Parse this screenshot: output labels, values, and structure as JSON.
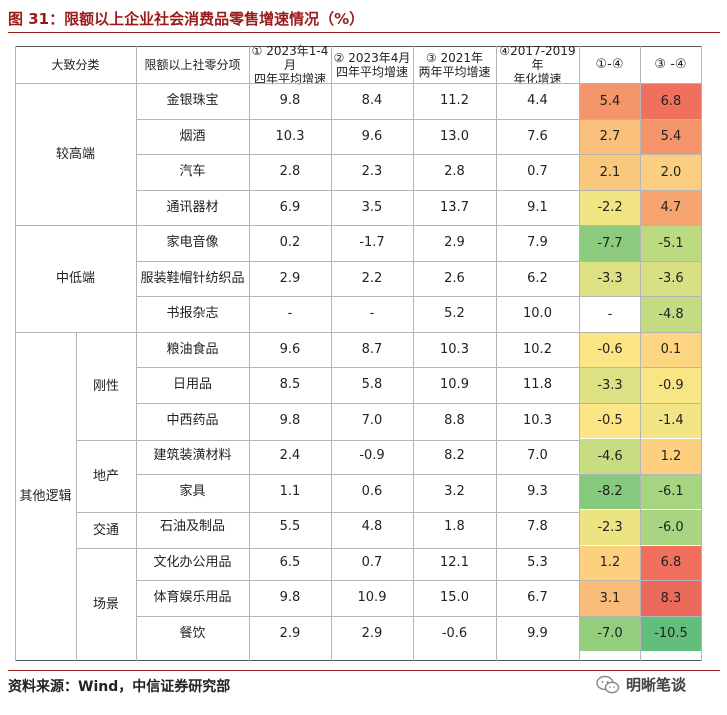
{
  "title": "图 31：限额以上企业社会消费品零售增速情况（%）",
  "headers": [
    "大致分类",
    "限额以上社零分项",
    "① 2023年1-4月\n四年平均增速",
    "② 2023年4月\n四年平均增速",
    "③ 2021年\n两年平均增速",
    "④2017-2019年\n年化增速",
    "①-④",
    "③ -④"
  ],
  "groups": [
    "较高端",
    "中低端",
    "其他逻辑"
  ],
  "subgroups": [
    "刚性",
    "地产",
    "交通",
    "场景"
  ],
  "rows": [
    {
      "item": "金银珠宝",
      "c1": "9.8",
      "c2": "8.4",
      "c3": "11.2",
      "c4": "4.4",
      "d1": "5.4",
      "d2": "6.8",
      "col1": "#f4956b",
      "col2": "#f0705d"
    },
    {
      "item": "烟酒",
      "c1": "10.3",
      "c2": "9.6",
      "c3": "13.0",
      "c4": "7.6",
      "d1": "2.7",
      "d2": "5.4",
      "col1": "#f8c07b",
      "col2": "#f4956b"
    },
    {
      "item": "汽车",
      "c1": "2.8",
      "c2": "2.3",
      "c3": "2.8",
      "c4": "0.7",
      "d1": "2.1",
      "d2": "2.0",
      "col1": "#fac87d",
      "col2": "#fbcf7f"
    },
    {
      "item": "通讯器材",
      "c1": "6.9",
      "c2": "3.5",
      "c3": "13.7",
      "c4": "9.1",
      "d1": "-2.2",
      "d2": "4.7",
      "col1": "#f0e483",
      "col2": "#f6a470"
    },
    {
      "item": "家电音像",
      "c1": "0.2",
      "c2": "-1.7",
      "c3": "2.9",
      "c4": "7.9",
      "d1": "-7.7",
      "d2": "-5.1",
      "col1": "#8ccb7e",
      "col2": "#bcda82"
    },
    {
      "item": "服装鞋帽针纺织品",
      "c1": "2.9",
      "c2": "2.2",
      "c3": "2.6",
      "c4": "6.2",
      "d1": "-3.3",
      "d2": "-3.6",
      "col1": "#dde083",
      "col2": "#d8e083"
    },
    {
      "item": "书报杂志",
      "c1": "-",
      "c2": "-",
      "c3": "5.2",
      "c4": "10.0",
      "d1": "-",
      "d2": "-4.8",
      "col1": "#ffffff",
      "col2": "#c3dc82"
    },
    {
      "item": "粮油食品",
      "c1": "9.6",
      "c2": "8.7",
      "c3": "10.3",
      "c4": "10.2",
      "d1": "-0.6",
      "d2": "0.1",
      "col1": "#fbe585",
      "col2": "#fed580"
    },
    {
      "item": "日用品",
      "c1": "8.5",
      "c2": "5.8",
      "c3": "10.9",
      "c4": "11.8",
      "d1": "-3.3",
      "d2": "-0.9",
      "col1": "#dde083",
      "col2": "#f8e584"
    },
    {
      "item": "中西药品",
      "c1": "9.8",
      "c2": "7.0",
      "c3": "8.8",
      "c4": "10.3",
      "d1": "-0.5",
      "d2": "-1.4",
      "col1": "#fce585",
      "col2": "#f1e484"
    },
    {
      "item": "建筑装潢材料",
      "c1": "2.4",
      "c2": "-0.9",
      "c3": "8.2",
      "c4": "7.0",
      "d1": "-4.6",
      "d2": "1.2",
      "col1": "#c8dd82",
      "col2": "#fdd07f"
    },
    {
      "item": "家具",
      "c1": "1.1",
      "c2": "0.6",
      "c3": "3.2",
      "c4": "9.3",
      "d1": "-8.2",
      "d2": "-6.1",
      "col1": "#84c97e",
      "col2": "#a6d480"
    },
    {
      "item": "石油及制品",
      "c1": "5.5",
      "c2": "4.8",
      "c3": "1.8",
      "c4": "7.8",
      "d1": "-2.3",
      "d2": "-6.0",
      "col1": "#ece383",
      "col2": "#a9d580"
    },
    {
      "item": "文化办公用品",
      "c1": "6.5",
      "c2": "0.7",
      "c3": "12.1",
      "c4": "5.3",
      "d1": "1.2",
      "d2": "6.8",
      "col1": "#fdd07f",
      "col2": "#f0705d"
    },
    {
      "item": "体育娱乐用品",
      "c1": "9.8",
      "c2": "10.9",
      "c3": "15.0",
      "c4": "6.7",
      "d1": "3.1",
      "d2": "8.3",
      "col1": "#f8bd7a",
      "col2": "#ec6a5c"
    },
    {
      "item": "餐饮",
      "c1": "2.9",
      "c2": "2.9",
      "c3": "-0.6",
      "c4": "9.9",
      "d1": "-7.0",
      "d2": "-10.5",
      "col1": "#94cd7e",
      "col2": "#62be7b"
    }
  ],
  "source": "资料来源：Wind，中信证券研究部",
  "watermark": "明晰笔谈"
}
